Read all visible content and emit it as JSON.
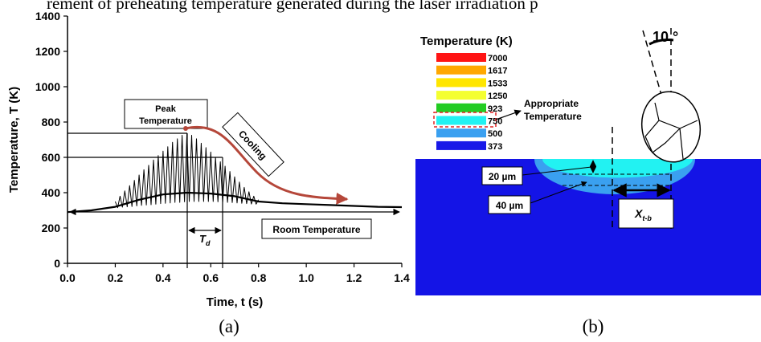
{
  "header": {
    "text": "rement of preheating temperature generated during the laser irradiation p"
  },
  "chart_data": {
    "type": "line",
    "x_label": "Time, t (s)",
    "y_label": "Temperature, T (K)",
    "xlim": [
      0,
      1.4
    ],
    "xticks": [
      {
        "value": 0,
        "label": "0.0"
      },
      0.2,
      0.4,
      0.6,
      0.8,
      {
        "value": 1,
        "label": "1.0"
      },
      1.2,
      1.4
    ],
    "ylim": [
      0,
      1400
    ],
    "yticks": [
      0,
      200,
      400,
      600,
      800,
      1000,
      1200,
      1400
    ],
    "series": [
      {
        "color": "#000000",
        "x": [
          0,
          0.1,
          0.2,
          0.3,
          0.4,
          0.5,
          0.6,
          0.7,
          0.8,
          0.9,
          1.0,
          1.1,
          1.2,
          1.3,
          1.4
        ],
        "values": [
          290,
          300,
          320,
          360,
          390,
          400,
          395,
          380,
          350,
          340,
          335,
          330,
          325,
          320,
          318
        ]
      },
      {
        "color": "#000000",
        "x": [
          0.2,
          0.21,
          0.22,
          0.23,
          0.24,
          0.25,
          0.26,
          0.27,
          0.28,
          0.29,
          0.3,
          0.31,
          0.32,
          0.33,
          0.34,
          0.35,
          0.36,
          0.37,
          0.38,
          0.39,
          0.4,
          0.41,
          0.42,
          0.43,
          0.44,
          0.45,
          0.46,
          0.47,
          0.48,
          0.49,
          0.5,
          0.51,
          0.52,
          0.53,
          0.54,
          0.55,
          0.56,
          0.57,
          0.58,
          0.59,
          0.6,
          0.61,
          0.62,
          0.63,
          0.64,
          0.65,
          0.66,
          0.67,
          0.68,
          0.69,
          0.7,
          0.71,
          0.72,
          0.73,
          0.74,
          0.75,
          0.76,
          0.77,
          0.78,
          0.79,
          0.8
        ],
        "values": [
          350,
          315,
          380,
          318,
          410,
          320,
          440,
          322,
          470,
          325,
          500,
          328,
          530,
          330,
          555,
          332,
          585,
          335,
          610,
          338,
          635,
          340,
          660,
          342,
          685,
          345,
          705,
          345,
          725,
          348,
          735,
          350,
          725,
          350,
          705,
          350,
          680,
          350,
          655,
          350,
          630,
          350,
          600,
          348,
          575,
          346,
          550,
          345,
          520,
          344,
          490,
          342,
          460,
          340,
          430,
          338,
          405,
          336,
          380,
          335,
          360
        ]
      }
    ],
    "annotations": {
      "peak": [
        "Peak",
        "Temperature"
      ],
      "cooling": "Cooling",
      "td_main": "T",
      "td_sub": "d",
      "room": "Room Temperature"
    }
  },
  "panel_b": {
    "legend_title": "Temperature (K)",
    "legend": [
      {
        "label": 7000,
        "color": "#ff1414"
      },
      {
        "label": 1617,
        "color": "#ffa800"
      },
      {
        "label": 1533,
        "color": "#ffe600"
      },
      {
        "label": 1250,
        "color": "#f4ff30"
      },
      {
        "label": 923,
        "color": "#22cc22"
      },
      {
        "label": 750,
        "color": "#22f2f2"
      },
      {
        "label": 500,
        "color": "#3aa0f0"
      },
      {
        "label": 373,
        "color": "#1818e8"
      }
    ],
    "appropriate": [
      "Appropriate",
      "Temperature"
    ],
    "angle": "10 °",
    "depth1": "20 µm",
    "depth2": "40 µm",
    "x_main": "X",
    "x_sub": "t-b"
  },
  "captions": [
    "(a)",
    "(b)"
  ]
}
